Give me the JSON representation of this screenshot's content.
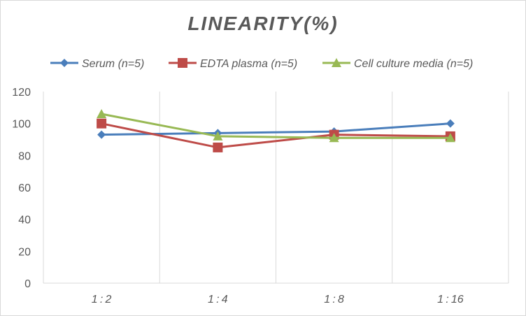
{
  "chart_data": {
    "type": "line",
    "title": "LINEARITY(%)",
    "categories": [
      "1:2",
      "1:4",
      "1:8",
      "1:16"
    ],
    "ylim": [
      0,
      120
    ],
    "yticks": [
      0,
      20,
      40,
      60,
      80,
      100,
      120
    ],
    "grid": "vertical",
    "legend": "top",
    "series": [
      {
        "name": "Serum (n=5)",
        "values": [
          93,
          94,
          95,
          100
        ],
        "color": "#4a7ebb",
        "marker": "diamond"
      },
      {
        "name": "EDTA plasma (n=5)",
        "values": [
          100,
          85,
          93,
          92
        ],
        "color": "#be4b48",
        "marker": "square"
      },
      {
        "name": "Cell culture media (n=5)",
        "values": [
          106,
          92,
          91,
          91
        ],
        "color": "#98b954",
        "marker": "triangle"
      }
    ]
  }
}
